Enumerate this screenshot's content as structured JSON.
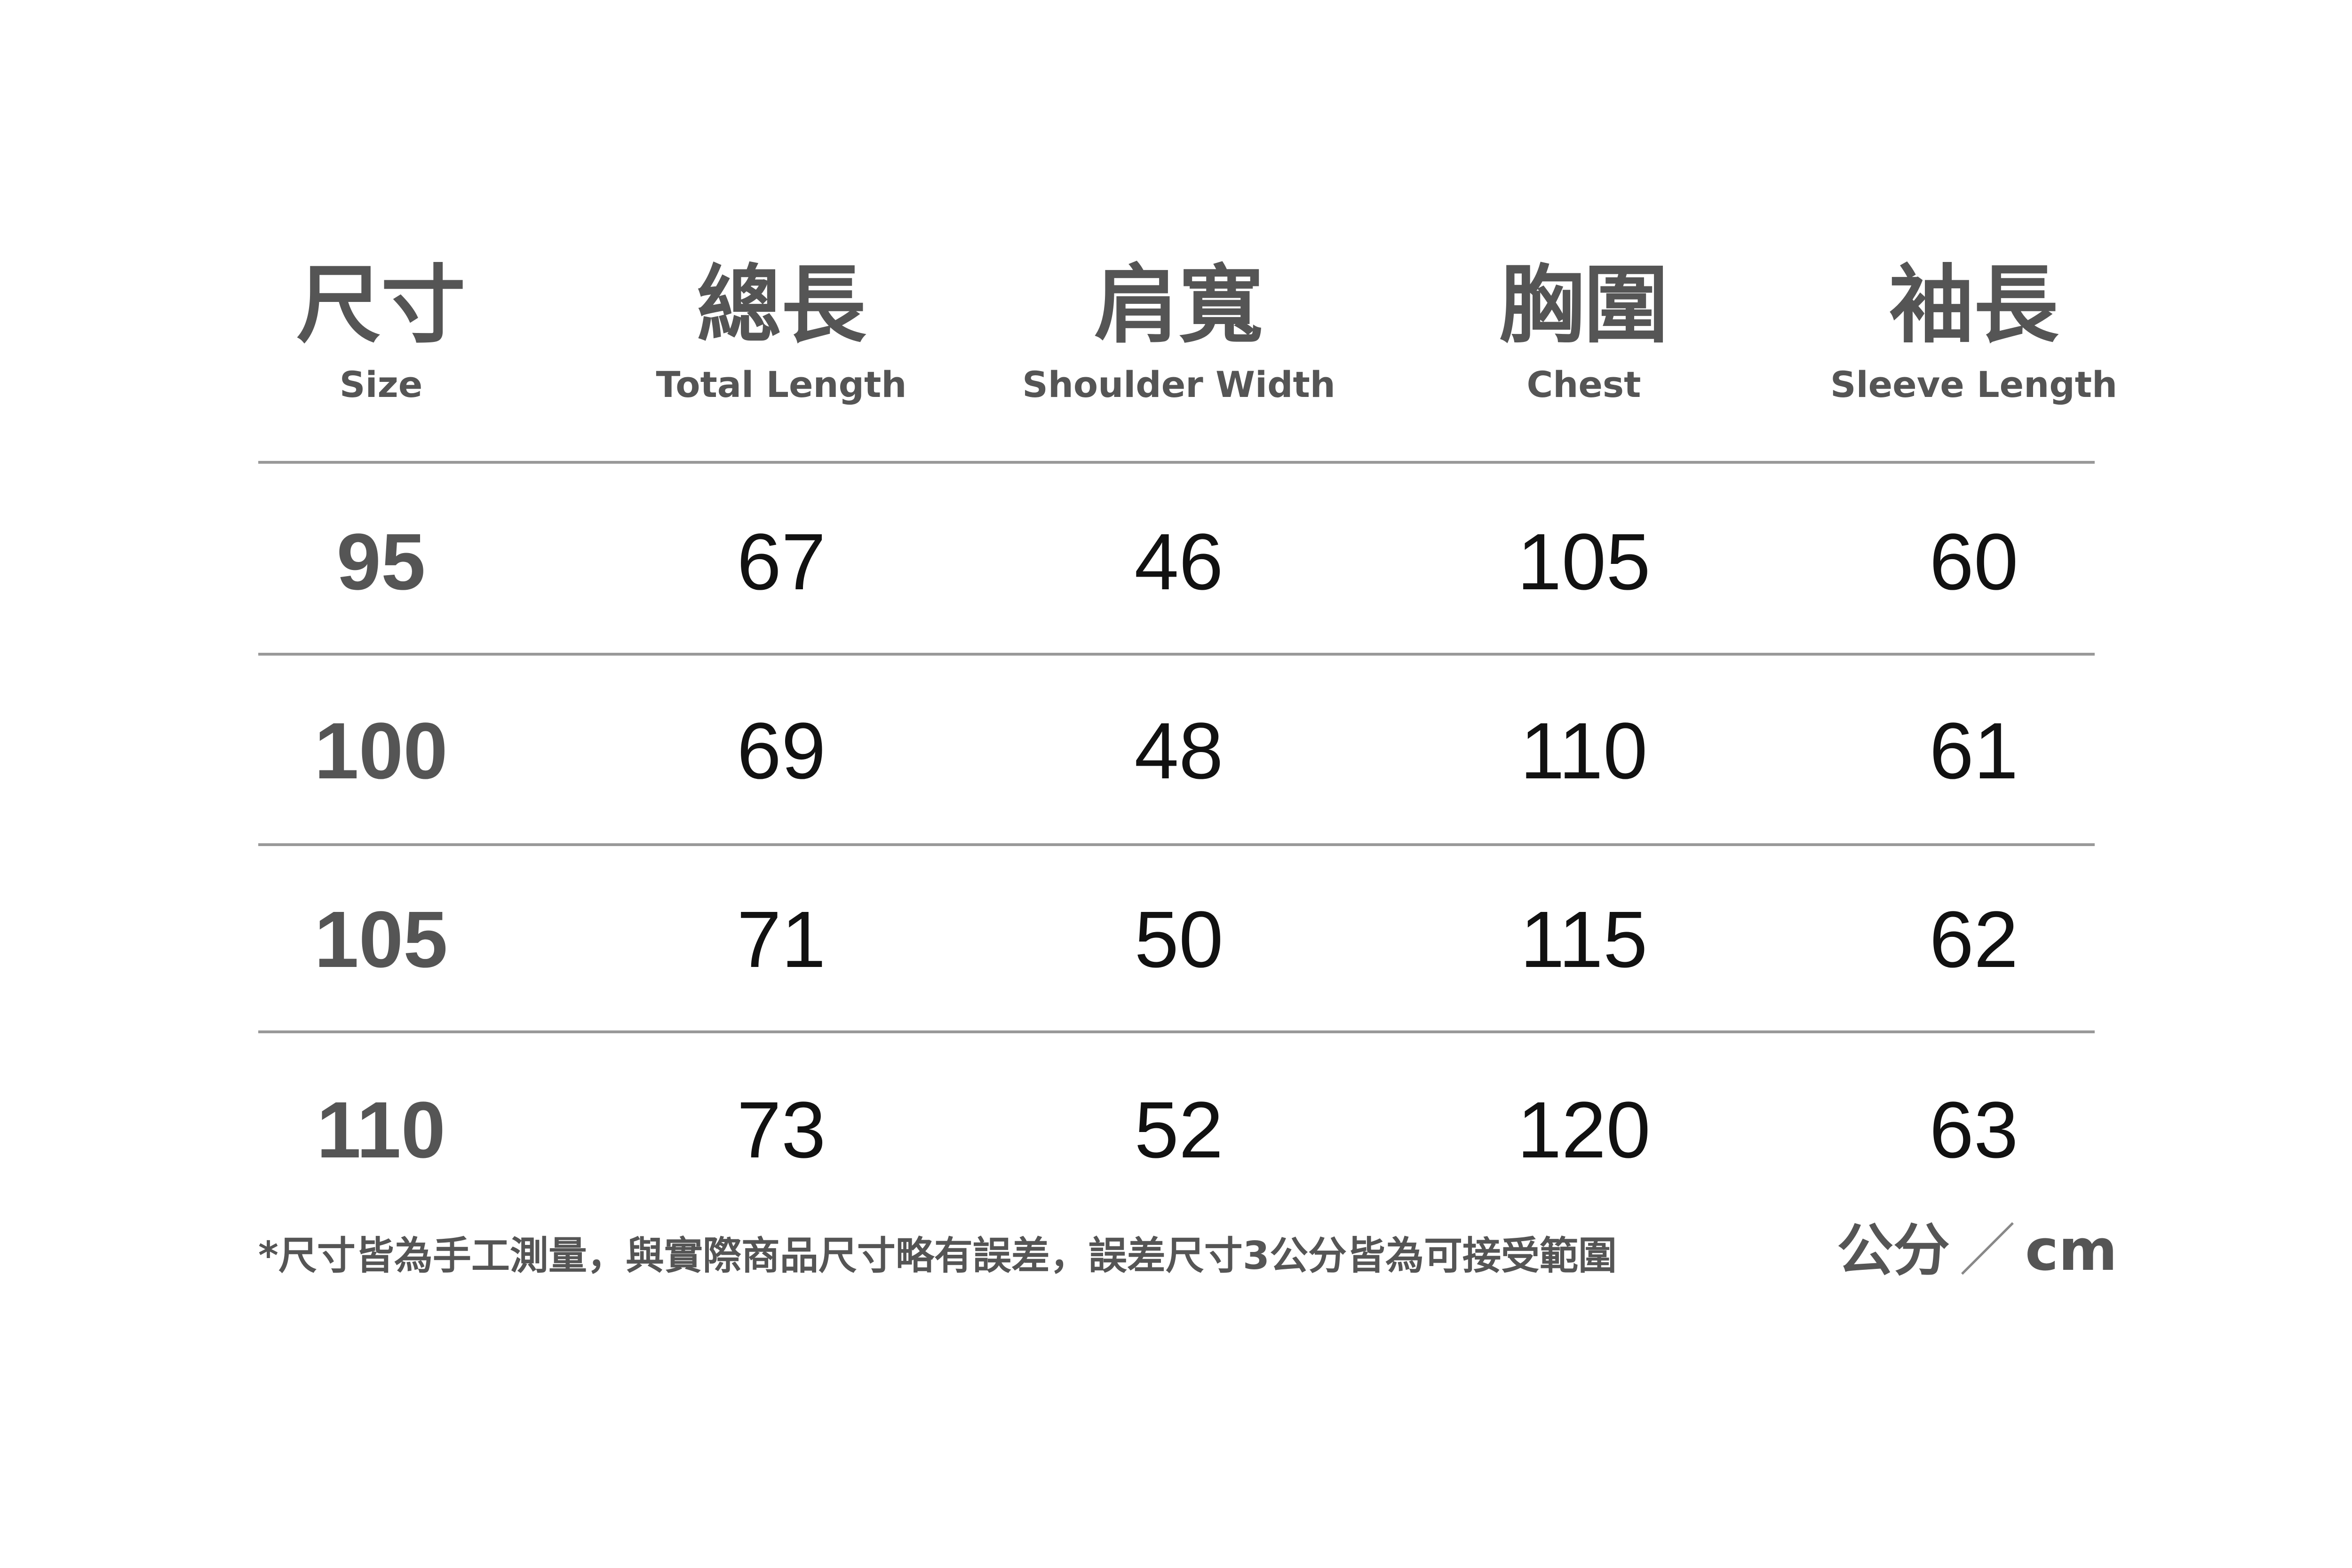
{
  "headers": [
    {
      "zh": "尺寸",
      "en": "Size"
    },
    {
      "zh": "總長",
      "en": "Total Length"
    },
    {
      "zh": "肩寬",
      "en": "Shoulder Width"
    },
    {
      "zh": "胸圍",
      "en": "Chest"
    },
    {
      "zh": "袖長",
      "en": "Sleeve Length"
    }
  ],
  "rows": [
    [
      "95",
      "67",
      "46",
      "105",
      "60"
    ],
    [
      "100",
      "69",
      "48",
      "110",
      "61"
    ],
    [
      "105",
      "71",
      "50",
      "115",
      "62"
    ],
    [
      "110",
      "73",
      "52",
      "120",
      "63"
    ]
  ],
  "footnote": "*尺寸皆為手工測量，與實際商品尺寸略有誤差，誤差尺寸3公分皆為可接受範圍",
  "unit": {
    "zh": "公分",
    "slash": "／",
    "en": "cm"
  },
  "colors": {
    "header": "#555555",
    "value": "#111111",
    "divider": "#999999"
  }
}
